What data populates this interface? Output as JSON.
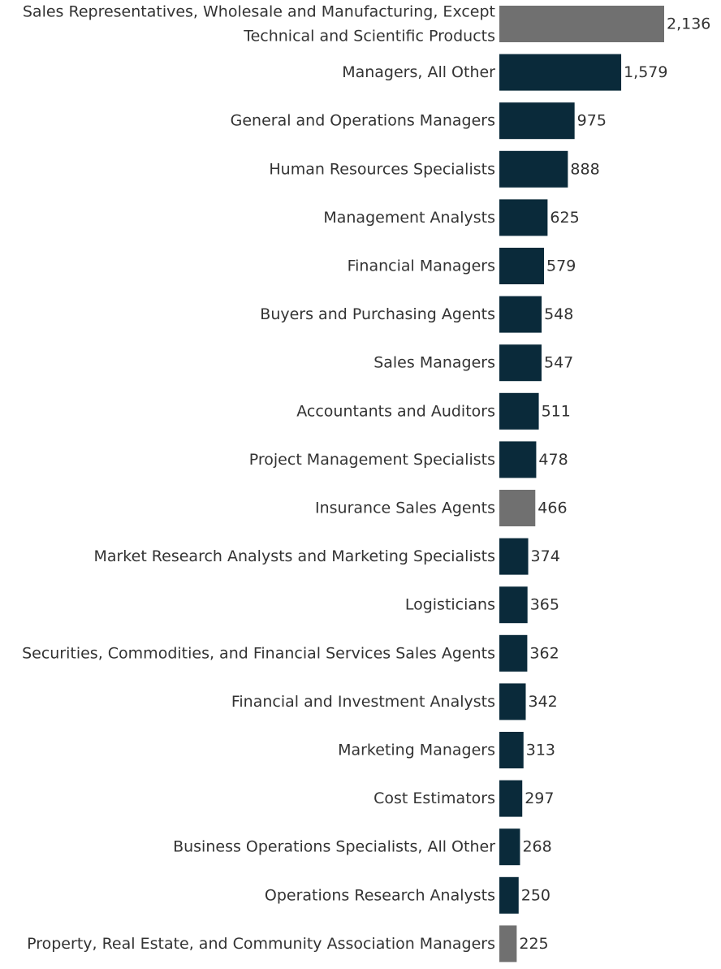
{
  "colors": {
    "primary": "#0a2a3a",
    "highlight": "#707070",
    "text": "#333333"
  },
  "chart_data": {
    "type": "bar",
    "orientation": "horizontal",
    "title": "",
    "xlabel": "",
    "ylabel": "",
    "xlim": [
      0,
      2136
    ],
    "grid": false,
    "legend": "none",
    "categories": [
      [
        "Sales Representatives, Wholesale and Manufacturing, Except",
        "Technical and Scientific Products"
      ],
      [
        "Managers, All Other"
      ],
      [
        "General and Operations Managers"
      ],
      [
        "Human Resources Specialists"
      ],
      [
        "Management Analysts"
      ],
      [
        "Financial Managers"
      ],
      [
        "Buyers and Purchasing Agents"
      ],
      [
        "Sales Managers"
      ],
      [
        "Accountants and Auditors"
      ],
      [
        "Project Management Specialists"
      ],
      [
        "Insurance Sales Agents"
      ],
      [
        "Market Research Analysts and Marketing Specialists"
      ],
      [
        "Logisticians"
      ],
      [
        "Securities, Commodities, and Financial Services Sales Agents"
      ],
      [
        "Financial and Investment Analysts"
      ],
      [
        "Marketing Managers"
      ],
      [
        "Cost Estimators"
      ],
      [
        "Business Operations Specialists, All Other"
      ],
      [
        "Operations Research Analysts"
      ],
      [
        "Property, Real Estate, and Community Association Managers"
      ]
    ],
    "values": [
      2136,
      1579,
      975,
      888,
      625,
      579,
      548,
      547,
      511,
      478,
      466,
      374,
      365,
      362,
      342,
      313,
      297,
      268,
      250,
      225
    ],
    "value_labels": [
      "2,136",
      "1,579",
      "975",
      "888",
      "625",
      "579",
      "548",
      "547",
      "511",
      "478",
      "466",
      "374",
      "365",
      "362",
      "342",
      "313",
      "297",
      "268",
      "250",
      "225"
    ],
    "highlighted": [
      true,
      false,
      false,
      false,
      false,
      false,
      false,
      false,
      false,
      false,
      true,
      false,
      false,
      false,
      false,
      false,
      false,
      false,
      false,
      true
    ]
  }
}
